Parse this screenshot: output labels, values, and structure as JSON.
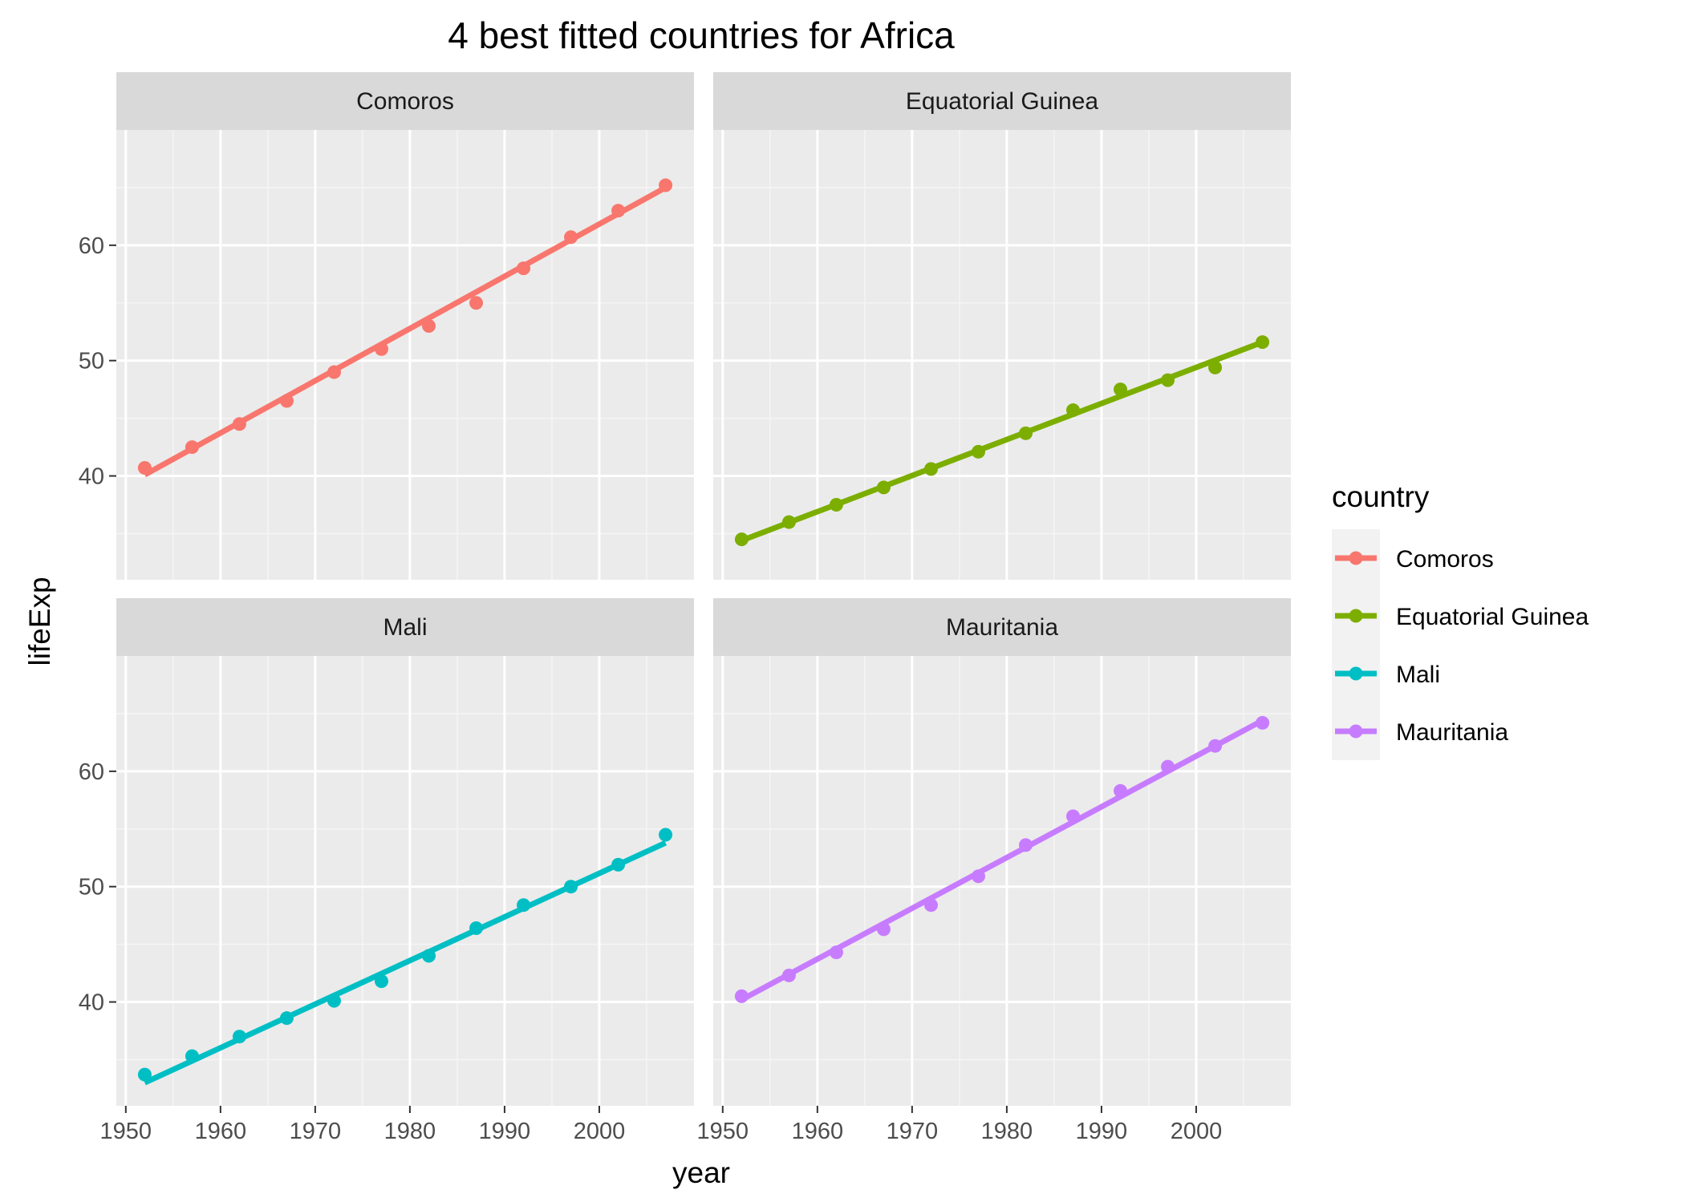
{
  "chart_data": {
    "type": "line",
    "title": "4 best fitted countries for Africa",
    "xlabel": "year",
    "ylabel": "lifeExp",
    "xlim": [
      1949,
      2010
    ],
    "ylim": [
      31,
      70
    ],
    "x_ticks": [
      1950,
      1960,
      1970,
      1980,
      1990,
      2000
    ],
    "y_ticks": [
      40,
      50,
      60
    ],
    "grid": true,
    "legend": {
      "title": "country",
      "position": "right"
    },
    "x": [
      1952,
      1957,
      1962,
      1967,
      1972,
      1977,
      1982,
      1987,
      1992,
      1997,
      2002,
      2007
    ],
    "series": [
      {
        "name": "Comoros",
        "color": "#F8766D",
        "values": [
          40.7,
          42.5,
          44.5,
          46.5,
          49.0,
          51.0,
          53.0,
          55.0,
          58.0,
          60.7,
          63.0,
          65.2
        ],
        "fit": [
          40.1,
          65.0
        ]
      },
      {
        "name": "Equatorial Guinea",
        "color": "#7CAE00",
        "values": [
          34.5,
          36.0,
          37.5,
          39.0,
          40.6,
          42.1,
          43.7,
          45.7,
          47.5,
          48.3,
          49.4,
          51.6
        ],
        "fit": [
          34.4,
          51.6
        ]
      },
      {
        "name": "Mali",
        "color": "#00BFC4",
        "values": [
          33.7,
          35.3,
          37.0,
          38.6,
          40.1,
          41.8,
          44.0,
          46.4,
          48.4,
          50.0,
          51.9,
          54.5
        ],
        "fit": [
          33.0,
          53.8
        ]
      },
      {
        "name": "Mauritania",
        "color": "#C77CFF",
        "values": [
          40.5,
          42.3,
          44.3,
          46.3,
          48.4,
          50.9,
          53.6,
          56.1,
          58.3,
          60.4,
          62.2,
          64.2
        ],
        "fit": [
          40.2,
          64.4
        ]
      }
    ]
  }
}
